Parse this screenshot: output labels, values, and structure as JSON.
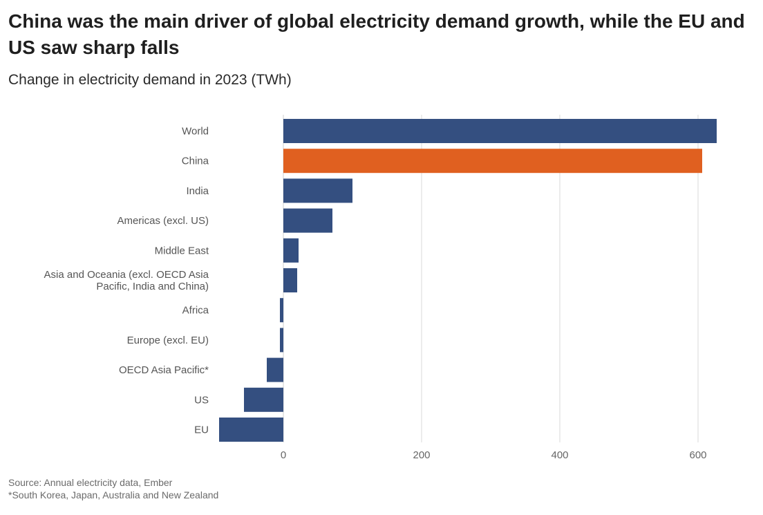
{
  "title": "China was the main driver of global electricity demand growth, while the EU and US saw sharp falls",
  "subtitle": "Change in electricity demand in 2023 (TWh)",
  "source": "Source: Annual electricity data, Ember",
  "footnote": "*South Korea, Japan, Australia and New Zealand",
  "colors": {
    "default_bar": "#344f80",
    "highlight_bar": "#e06020",
    "grid": "#d9d9d9"
  },
  "chart_data": {
    "type": "bar",
    "orientation": "horizontal",
    "categories": [
      [
        "World"
      ],
      [
        "China"
      ],
      [
        "India"
      ],
      [
        "Americas (excl. US)"
      ],
      [
        "Middle East"
      ],
      [
        "Asia and Oceania (excl. OECD Asia",
        "Pacific, India and China)"
      ],
      [
        "Africa"
      ],
      [
        "Europe (excl. EU)"
      ],
      [
        "OECD Asia Pacific*"
      ],
      [
        "US"
      ],
      [
        "EU"
      ]
    ],
    "values": [
      627,
      606,
      100,
      71,
      22,
      20,
      -5,
      -5,
      -24,
      -57,
      -93
    ],
    "highlight": [
      1
    ],
    "xlim": [
      -100,
      640
    ],
    "xticks": [
      0,
      200,
      400,
      600
    ],
    "grid": true
  }
}
